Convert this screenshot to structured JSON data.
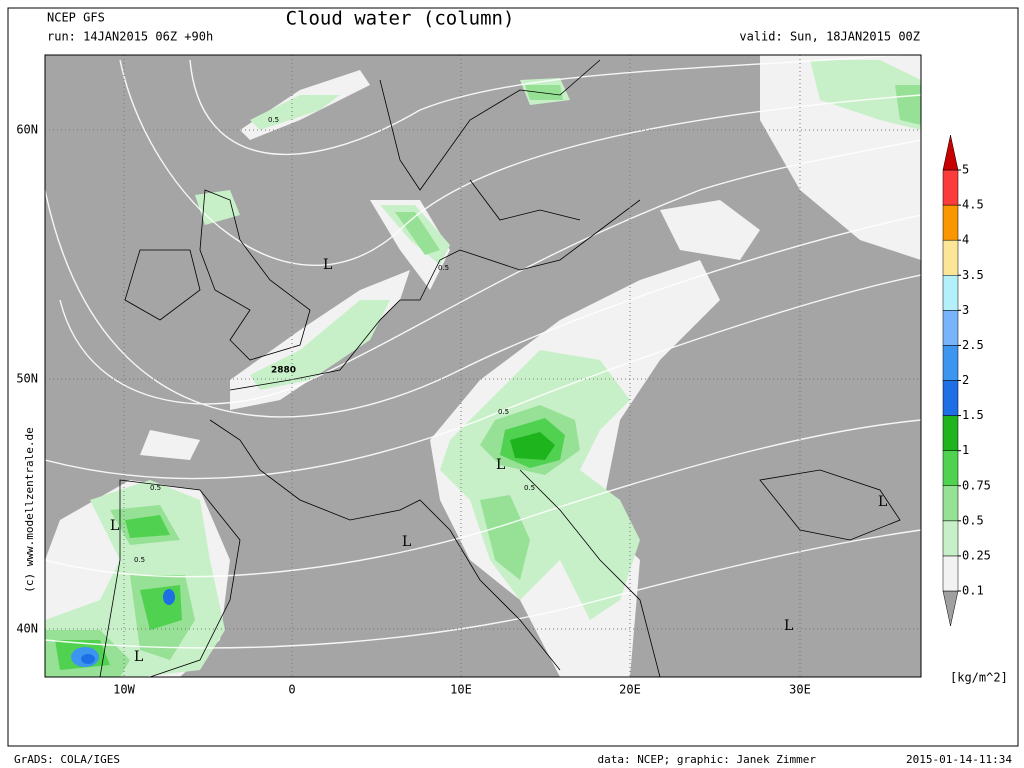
{
  "header": {
    "model": "NCEP GFS",
    "run": "run: 14JAN2015 06Z +90h",
    "title": "Cloud water (column)",
    "valid": "valid: Sun, 18JAN2015 00Z"
  },
  "map": {
    "lat_labels": [
      "60N",
      "50N",
      "40N"
    ],
    "lon_labels": [
      "10W",
      "0",
      "10E",
      "20E",
      "30E"
    ],
    "labels": [
      "L",
      "L",
      "L",
      "L",
      "L",
      "L",
      "L",
      "0.5",
      "0.5",
      "0.5",
      "0.5",
      "0.5",
      "0.5",
      "2880"
    ],
    "copyright": "(c) www.modellzentrale.de"
  },
  "colorbar": {
    "levels": [
      0.1,
      0.25,
      0.5,
      0.75,
      1,
      1.5,
      2,
      2.5,
      3,
      3.5,
      4,
      4.5,
      5
    ],
    "colors": [
      "#a0a0a0",
      "#f2f2f2",
      "#c8f0c8",
      "#96e196",
      "#50d250",
      "#1eb41e",
      "#1e6ee6",
      "#3c96f0",
      "#78b4fa",
      "#b4f0fa",
      "#fae696",
      "#fa9600",
      "#fa3c3c",
      "#c80000"
    ],
    "unit": "[kg/m^2]"
  },
  "footer": {
    "software": "GrADS: COLA/IGES",
    "credit": "data: NCEP; graphic: Janek Zimmer",
    "timestamp": "2015-01-14-11:34"
  }
}
